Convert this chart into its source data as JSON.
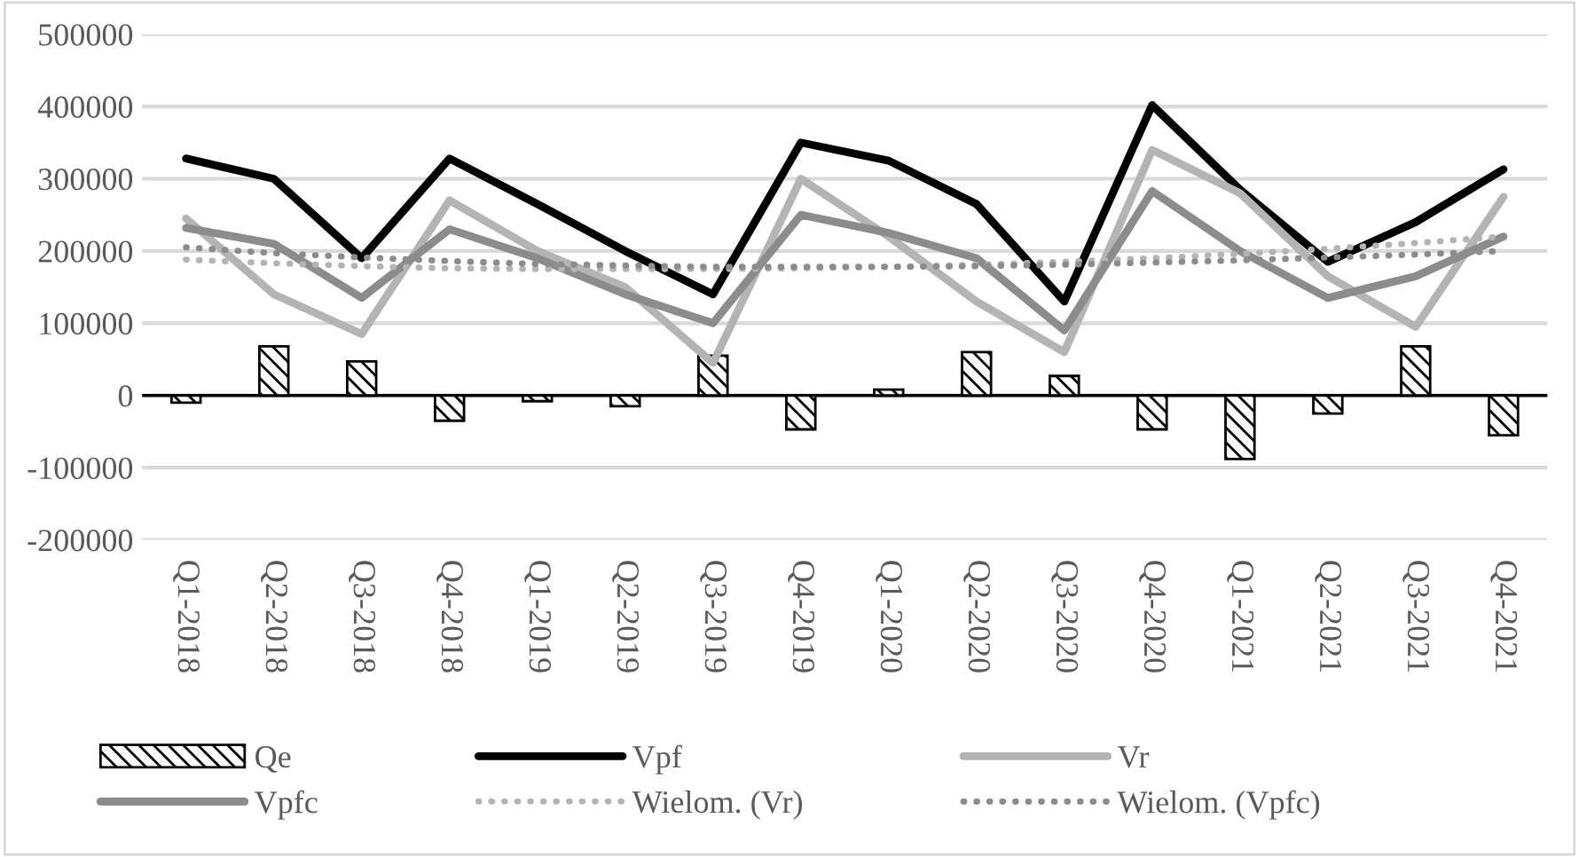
{
  "chart_data": {
    "type": "line",
    "categories": [
      "Q1-2018",
      "Q2-2018",
      "Q3-2018",
      "Q4-2018",
      "Q1-2019",
      "Q2-2019",
      "Q3-2019",
      "Q4-2019",
      "Q1-2020",
      "Q2-2020",
      "Q3-2020",
      "Q4-2020",
      "Q1-2021",
      "Q2-2021",
      "Q3-2021",
      "Q4-2021"
    ],
    "series": [
      {
        "name": "Qe",
        "type": "bar",
        "color": "#000000",
        "values": [
          -10000,
          68000,
          47000,
          -35000,
          -8000,
          -15000,
          55000,
          -47000,
          8000,
          60000,
          27000,
          -47000,
          -88000,
          -25000,
          68000,
          -55000
        ]
      },
      {
        "name": "Vpf",
        "color": "#000000",
        "line_style": "solid",
        "values": [
          328000,
          300000,
          190000,
          328000,
          265000,
          200000,
          140000,
          350000,
          325000,
          265000,
          130000,
          402000,
          285000,
          185000,
          240000,
          313000
        ]
      },
      {
        "name": "Vr",
        "color": "#b4b4b4",
        "line_style": "solid",
        "values": [
          245000,
          140000,
          85000,
          270000,
          200000,
          150000,
          45000,
          300000,
          220000,
          130000,
          60000,
          340000,
          280000,
          165000,
          95000,
          275000
        ]
      },
      {
        "name": "Vpfc",
        "color": "#8c8c8c",
        "line_style": "solid",
        "values": [
          232000,
          210000,
          135000,
          230000,
          190000,
          140000,
          100000,
          250000,
          225000,
          190000,
          90000,
          283000,
          200000,
          135000,
          165000,
          220000
        ]
      },
      {
        "name": "Wielom. (Vr)",
        "color": "#b4b4b4",
        "line_style": "dotted",
        "values": [
          188000,
          183000,
          179000,
          176000,
          175000,
          175000,
          175000,
          176000,
          178000,
          181000,
          185000,
          190000,
          196000,
          203000,
          211000,
          220000
        ]
      },
      {
        "name": "Wielom. (Vpfc)",
        "color": "#8c8c8c",
        "line_style": "dotted",
        "values": [
          205000,
          197000,
          191000,
          186000,
          182000,
          180000,
          178000,
          178000,
          178000,
          179000,
          181000,
          184000,
          187000,
          191000,
          195000,
          200000
        ]
      }
    ],
    "ylim": [
      -200000,
      500000
    ],
    "yticks": [
      -200000,
      -100000,
      0,
      100000,
      200000,
      300000,
      400000,
      500000
    ],
    "grid": "y",
    "legend": "bottom"
  }
}
